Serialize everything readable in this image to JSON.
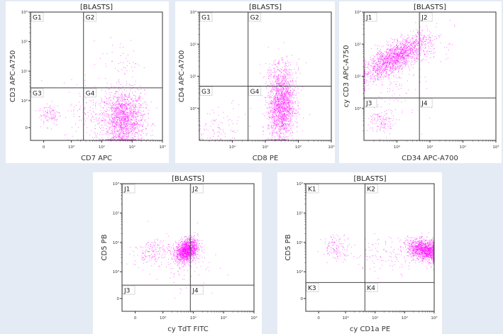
{
  "colors": {
    "page_bg": "#e4ebf4",
    "panel_bg": "#ffffff",
    "events": "#ff00ff",
    "gate_line": "#444444",
    "frame": "#333333"
  },
  "chart_data": [
    {
      "type": "scatter",
      "title": "[BLASTS]",
      "xlabel": "CD7 APC",
      "ylabel": "CD3 APC-A750",
      "xscale": "biexponential",
      "yscale": "biexponential",
      "xticks": [
        {
          "label": "0",
          "value": 0
        },
        {
          "label": "10⁰",
          "value": 1
        },
        {
          "label": "10¹",
          "value": 10
        },
        {
          "label": "10²",
          "value": 100
        },
        {
          "label": "10³",
          "value": 1000
        }
      ],
      "yticks": [
        {
          "label": "0",
          "value": 0
        },
        {
          "label": "10⁰",
          "value": 1
        },
        {
          "label": "10¹",
          "value": 10
        },
        {
          "label": "10²",
          "value": 100
        },
        {
          "label": "10³",
          "value": 1000
        }
      ],
      "gate": {
        "x": 2.5,
        "y": 2.7
      },
      "quadrants": [
        "G1",
        "G2",
        "G3",
        "G4"
      ],
      "populations": [
        {
          "x": 50,
          "y": 0.3,
          "sx": 0.35,
          "sy": 0.5,
          "rho": 0,
          "count": 1600
        },
        {
          "x": 40,
          "y": 20,
          "sx": 0.35,
          "sy": 0.4,
          "rho": 0,
          "count": 50
        },
        {
          "x": 0.21,
          "y": 0.52,
          "sx": 0.18,
          "sy": 0.2,
          "rho": 0,
          "count": 110
        },
        {
          "x": 5,
          "y": 0.6,
          "sx": 0.5,
          "sy": 0.5,
          "rho": 0,
          "count": 150
        }
      ]
    },
    {
      "type": "scatter",
      "title": "[BLASTS]",
      "xlabel": "CD8 PE",
      "ylabel": "CD4 APC-A700",
      "xscale": "log",
      "yscale": "log",
      "xticks": [
        {
          "label": "10⁰",
          "value": 1
        },
        {
          "label": "10¹",
          "value": 10
        },
        {
          "label": "10²",
          "value": 100
        },
        {
          "label": "10³",
          "value": 1000
        }
      ],
      "yticks": [
        {
          "label": "10⁰",
          "value": 1
        },
        {
          "label": "10¹",
          "value": 10
        },
        {
          "label": "10²",
          "value": 100
        },
        {
          "label": "10³",
          "value": 1000
        }
      ],
      "gate": {
        "x": 3.0,
        "y": 4.9
      },
      "quadrants": [
        "G1",
        "G2",
        "G3",
        "G4"
      ],
      "populations": [
        {
          "x": 30,
          "y": 1.2,
          "sx": 0.2,
          "sy": 0.55,
          "rho": 0.1,
          "count": 1700
        },
        {
          "x": 0.4,
          "y": 0.3,
          "sx": 0.4,
          "sy": 0.35,
          "rho": 0.5,
          "count": 90
        },
        {
          "x": 30,
          "y": 12,
          "sx": 0.3,
          "sy": 0.25,
          "rho": 0,
          "count": 120
        }
      ]
    },
    {
      "type": "scatter",
      "title": "[BLASTS]",
      "xlabel": "CD34 APC-A700",
      "ylabel": "cy CD3 APC-A750",
      "xscale": "log",
      "yscale": "log",
      "xticks": [
        {
          "label": "10⁰",
          "value": 1
        },
        {
          "label": "10¹",
          "value": 10
        },
        {
          "label": "10²",
          "value": 100
        },
        {
          "label": "10³",
          "value": 1000
        }
      ],
      "yticks": [
        {
          "label": "10⁰",
          "value": 1
        },
        {
          "label": "10¹",
          "value": 10
        },
        {
          "label": "10²",
          "value": 100
        },
        {
          "label": "10³",
          "value": 1000
        }
      ],
      "gate": {
        "x": 4.8,
        "y": 2.1
      },
      "quadrants": [
        "J1",
        "J2",
        "J3",
        "J4"
      ],
      "populations": [
        {
          "x": 0.9,
          "y": 40,
          "sx": 0.5,
          "sy": 0.35,
          "rho": 0.75,
          "count": 1700
        },
        {
          "x": 0.35,
          "y": 0.4,
          "sx": 0.2,
          "sy": 0.2,
          "rho": 0,
          "count": 130
        },
        {
          "x": 12,
          "y": 60,
          "sx": 0.25,
          "sy": 0.2,
          "rho": 0,
          "count": 40
        },
        {
          "x": 1,
          "y": 4,
          "sx": 0.5,
          "sy": 0.5,
          "rho": 0,
          "count": 80
        }
      ]
    },
    {
      "type": "scatter",
      "title": "[BLASTS]",
      "xlabel": "cy TdT FITC",
      "ylabel": "CD5 PB",
      "xscale": "biexponential",
      "yscale": "biexponential",
      "xticks": [
        {
          "label": "0",
          "value": 0
        },
        {
          "label": "10⁰",
          "value": 1
        },
        {
          "label": "10¹",
          "value": 10
        },
        {
          "label": "10²",
          "value": 100
        },
        {
          "label": "10³",
          "value": 1000
        }
      ],
      "yticks": [
        {
          "label": "0",
          "value": 0
        },
        {
          "label": "10⁰",
          "value": 1
        },
        {
          "label": "10¹",
          "value": 10
        },
        {
          "label": "10²",
          "value": 100
        },
        {
          "label": "10³",
          "value": 1000
        }
      ],
      "gate": {
        "x": 8,
        "y": 0.5
      },
      "quadrants": [
        "J1",
        "J2",
        "J3",
        "J4"
      ],
      "populations": [
        {
          "x": 6,
          "y": 5.5,
          "sx": 0.18,
          "sy": 0.2,
          "rho": 0.3,
          "count": 1400
        },
        {
          "x": 0.6,
          "y": 5,
          "sx": 0.3,
          "sy": 0.2,
          "rho": 0.3,
          "count": 160
        },
        {
          "x": 3,
          "y": 2,
          "sx": 0.5,
          "sy": 0.4,
          "rho": 0,
          "count": 110
        }
      ]
    },
    {
      "type": "scatter",
      "title": "[BLASTS]",
      "xlabel": "cy CD1a PE",
      "ylabel": "CD5 PB",
      "xscale": "biexponential",
      "yscale": "biexponential",
      "xticks": [
        {
          "label": "0",
          "value": 0
        },
        {
          "label": "10⁰",
          "value": 1
        },
        {
          "label": "10¹",
          "value": 10
        },
        {
          "label": "10²",
          "value": 100
        },
        {
          "label": "10³",
          "value": 1000
        }
      ],
      "yticks": [
        {
          "label": "0",
          "value": 0
        },
        {
          "label": "10⁰",
          "value": 1
        },
        {
          "label": "10¹",
          "value": 10
        },
        {
          "label": "10²",
          "value": 100
        },
        {
          "label": "10³",
          "value": 1000
        }
      ],
      "gate": {
        "x": 4.5,
        "y": 0.6
      },
      "quadrants": [
        "K1",
        "K2",
        "K3",
        "K4"
      ],
      "populations": [
        {
          "x": 500,
          "y": 5.5,
          "sx": 0.3,
          "sy": 0.18,
          "rho": -0.3,
          "count": 1400
        },
        {
          "x": 0.67,
          "y": 7,
          "sx": 0.25,
          "sy": 0.22,
          "rho": 0,
          "count": 130
        },
        {
          "x": 30,
          "y": 4,
          "sx": 0.6,
          "sy": 0.3,
          "rho": 0,
          "count": 120
        }
      ]
    }
  ]
}
